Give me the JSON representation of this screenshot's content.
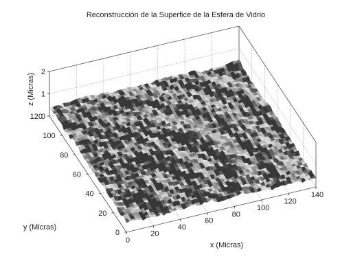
{
  "chart_data": {
    "type": "surface",
    "title": "Reconstrucción de la Superfice de la Esfera de Vidrio",
    "xlabel": "x (Micras)",
    "ylabel": "y (Micras)",
    "zlabel": "z (Micras)",
    "xlim": [
      0,
      140
    ],
    "ylim": [
      0,
      120
    ],
    "zlim": [
      0,
      2
    ],
    "xticks": [
      "0",
      "20",
      "40",
      "60",
      "80",
      "100",
      "120",
      "140"
    ],
    "yticks": [
      "0",
      "20",
      "40",
      "60",
      "80",
      "100",
      "120"
    ],
    "zticks": [
      "0",
      "1",
      "2"
    ],
    "grid": true,
    "surface_description": "Rough glass-sphere surface, mean height about 0.5 micras with ~0.3 micras roughness, gently domed toward the center",
    "colormap": "gray"
  }
}
